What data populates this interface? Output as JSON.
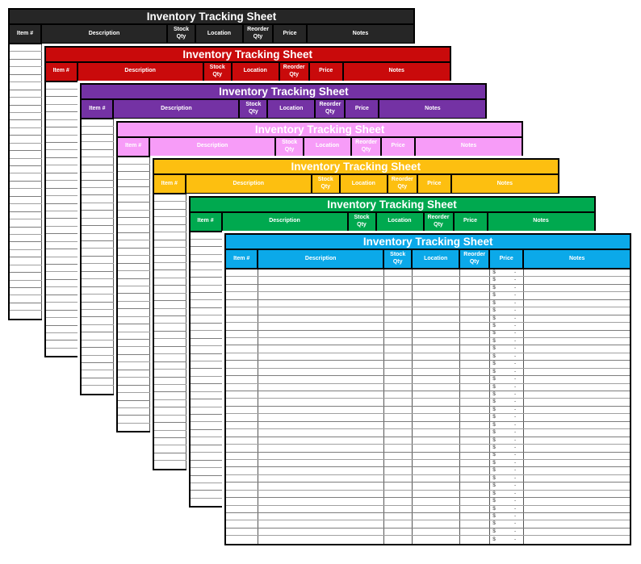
{
  "title": "Inventory Tracking Sheet",
  "columns": [
    "Item #",
    "Description",
    "Stock Qty",
    "Location",
    "Reorder Qty",
    "Price",
    "Notes"
  ],
  "row_count": 36,
  "price_cell": {
    "currency": "$",
    "value": "-"
  },
  "sheets": [
    {
      "name": "black",
      "color": "#262626",
      "text_color": "#ffffff"
    },
    {
      "name": "red",
      "color": "#c90a0b",
      "text_color": "#ffffff"
    },
    {
      "name": "purple",
      "color": "#7432a4",
      "text_color": "#ffffff"
    },
    {
      "name": "pink",
      "color": "#f79cf8",
      "text_color": "#ffffff"
    },
    {
      "name": "gold",
      "color": "#fdbf10",
      "text_color": "#ffffff"
    },
    {
      "name": "green",
      "color": "#00a94f",
      "text_color": "#ffffff"
    },
    {
      "name": "blue",
      "color": "#0ba9e9",
      "text_color": "#ffffff"
    }
  ]
}
